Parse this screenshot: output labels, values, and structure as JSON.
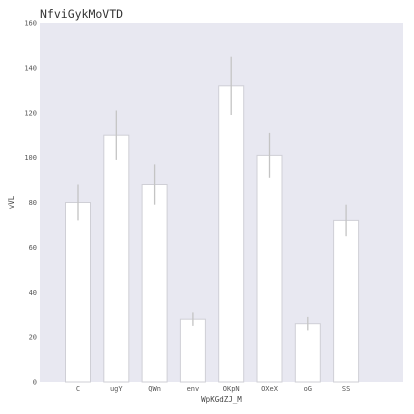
{
  "chart_data": {
    "type": "bar",
    "title": "NfviGykMoVTD",
    "xlabel": "WpKGdZJ_M",
    "ylabel": "vVL",
    "categories": [
      "C",
      "ugY",
      "QWn",
      "env",
      "OKpN",
      "OXeX",
      "oG",
      "SS"
    ],
    "values": [
      80,
      110,
      88,
      28,
      132,
      101,
      26,
      72
    ],
    "errors": [
      8,
      11,
      9,
      3,
      13,
      10,
      3,
      7
    ],
    "ylim": [
      0,
      160
    ],
    "yticks": [
      0,
      20,
      40,
      60,
      80,
      100,
      120,
      140,
      160
    ],
    "grid": false,
    "legend": "none",
    "colors": {
      "plot_background": "#e8e8f1",
      "bar_fill": "#ffffff",
      "bar_edge": "#cfcfd6",
      "error_bar": "#c4c4c4"
    }
  }
}
